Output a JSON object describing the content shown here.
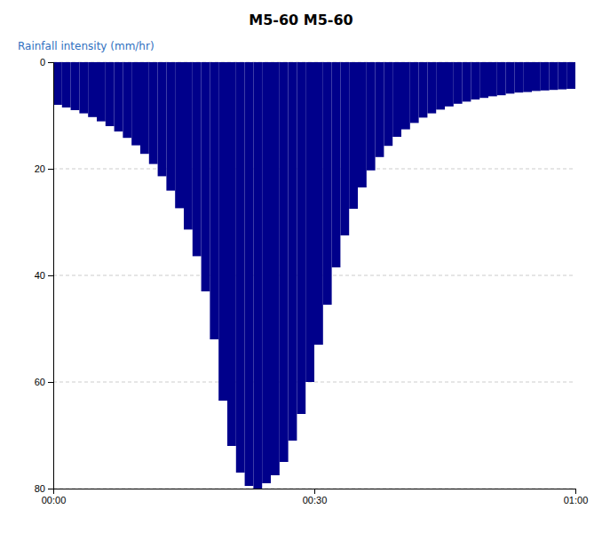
{
  "chart_data": {
    "type": "bar",
    "title": "M5-60 M5-60",
    "y_label": "Rainfall intensity (mm/hr)",
    "color": "#00008B",
    "bins": [
      0,
      1,
      2,
      3,
      4,
      5,
      6,
      7,
      8,
      9,
      10,
      11,
      12,
      13,
      14,
      15,
      16,
      17,
      18,
      19,
      20,
      21,
      22,
      23,
      24,
      25,
      26,
      27,
      28,
      29,
      30,
      31,
      32,
      33,
      34,
      35,
      36,
      37,
      38,
      39,
      40,
      41,
      42,
      43,
      44,
      45,
      46,
      47,
      48,
      49,
      50,
      51,
      52,
      53,
      54,
      55,
      56,
      57,
      58,
      59,
      60
    ],
    "values": [
      8.0,
      8.5,
      9.0,
      9.6,
      10.3,
      11.1,
      12.0,
      13.0,
      14.2,
      15.6,
      17.2,
      19.1,
      21.4,
      24.1,
      27.4,
      31.4,
      36.4,
      43.0,
      52.0,
      63.5,
      72.0,
      77.0,
      79.5,
      80.0,
      79.0,
      77.5,
      75.0,
      71.0,
      66.0,
      60.0,
      53.0,
      45.5,
      38.5,
      32.5,
      27.5,
      23.5,
      20.3,
      17.8,
      15.7,
      14.0,
      12.6,
      11.4,
      10.4,
      9.6,
      8.9,
      8.3,
      7.8,
      7.4,
      7.0,
      6.7,
      6.4,
      6.2,
      5.9,
      5.7,
      5.6,
      5.4,
      5.3,
      5.2,
      5.1,
      5.0
    ],
    "xlim": [
      0,
      60
    ],
    "xticks": [
      {
        "value": 0,
        "label": "00:00"
      },
      {
        "value": 30,
        "label": "00:30"
      },
      {
        "value": 60,
        "label": "01:00"
      }
    ],
    "ylim": [
      80,
      0
    ],
    "yticks": [
      0,
      20,
      40,
      60,
      80
    ],
    "grid": true
  }
}
